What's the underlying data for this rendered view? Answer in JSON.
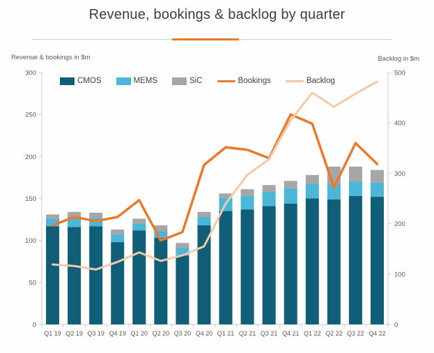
{
  "title": "Revenue, bookings & backlog by quarter",
  "left_axis_title": "Revenue & bookings in $m",
  "right_axis_title": "Backlog in $m",
  "colors": {
    "cmos": "#115e78",
    "mems": "#4bb6d8",
    "sic": "#a6a6a6",
    "bookings": "#e97a2b",
    "backlog": "#f5c9a8",
    "axis_line": "#c9c9c9",
    "tick_text": "#595959",
    "title_text": "#3d3d3d",
    "divider": "#b9d6da",
    "divider_accent": "#e97a2b"
  },
  "chart_data": {
    "type": "bar",
    "subtype": "stacked-column-with-lines",
    "title": "Revenue, bookings & backlog by quarter",
    "xlabel": "",
    "ylabel_left": "Revenue & bookings in $m",
    "ylabel_right": "Backlog in $m",
    "grid": false,
    "legend_position": "top-inside",
    "categories": [
      "Q1 19",
      "Q2 19",
      "Q3 19",
      "Q4 19",
      "Q1 20",
      "Q2 20",
      "Q3 20",
      "Q4 20",
      "Q1 21",
      "Q2 21",
      "Q3 21",
      "Q4 21",
      "Q1 22",
      "Q2 22",
      "Q3 22",
      "Q4 22"
    ],
    "series": [
      {
        "name": "CMOS",
        "kind": "bar",
        "stack": "revenue",
        "axis": "left",
        "color": "#115e78",
        "values": [
          117,
          116,
          117,
          98,
          112,
          103,
          82,
          118,
          135,
          137,
          141,
          144,
          150,
          149,
          153,
          152
        ]
      },
      {
        "name": "MEMS",
        "kind": "bar",
        "stack": "revenue",
        "axis": "left",
        "color": "#4bb6d8",
        "values": [
          9,
          12,
          10,
          9,
          8,
          8,
          9,
          10,
          16,
          16,
          17,
          18,
          17,
          18,
          17,
          17
        ]
      },
      {
        "name": "SiC",
        "kind": "bar",
        "stack": "revenue",
        "axis": "left",
        "color": "#a6a6a6",
        "values": [
          5,
          6,
          6,
          6,
          6,
          7,
          6,
          6,
          5,
          8,
          8,
          9,
          11,
          21,
          18,
          15
        ]
      },
      {
        "name": "Bookings",
        "kind": "line",
        "axis": "left",
        "color": "#e97a2b",
        "values": [
          118,
          128,
          123,
          128,
          148,
          100,
          110,
          190,
          211,
          208,
          198,
          250,
          239,
          163,
          216,
          191
        ]
      },
      {
        "name": "Backlog",
        "kind": "line",
        "axis": "right",
        "color": "#f5c9a8",
        "values": [
          119,
          116,
          109,
          124,
          143,
          126,
          137,
          155,
          240,
          297,
          328,
          405,
          460,
          432,
          458,
          482
        ]
      }
    ],
    "left_axis": {
      "min": 0,
      "max": 300,
      "step": 50,
      "ticks": [
        "0",
        "50",
        "100",
        "150",
        "200",
        "250",
        "300"
      ]
    },
    "right_axis": {
      "min": 0,
      "max": 500,
      "step": 100,
      "ticks": [
        "0",
        "100",
        "200",
        "300",
        "400",
        "500"
      ]
    }
  }
}
